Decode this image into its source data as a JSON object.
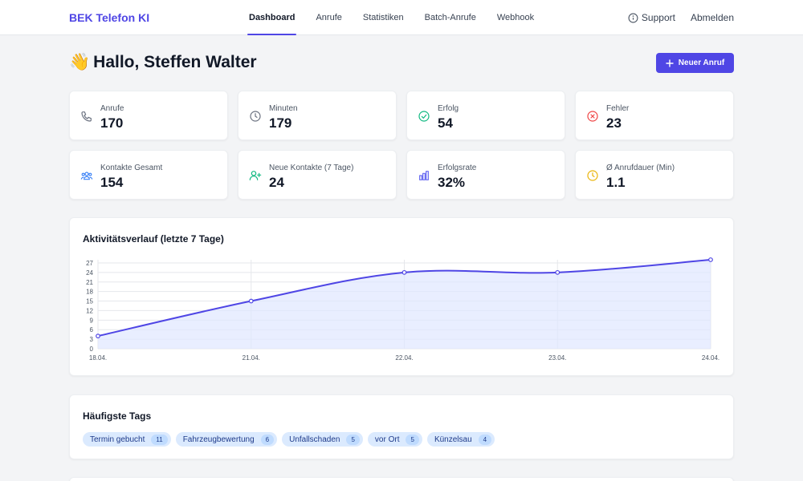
{
  "header": {
    "brand": "BEK Telefon KI",
    "nav": [
      {
        "label": "Dashboard",
        "active": true
      },
      {
        "label": "Anrufe"
      },
      {
        "label": "Statistiken"
      },
      {
        "label": "Batch-Anrufe"
      },
      {
        "label": "Webhook"
      }
    ],
    "support_label": "Support",
    "logout_label": "Abmelden"
  },
  "greeting": {
    "emoji": "👋",
    "text": "Hallo, Steffen Walter"
  },
  "new_call_label": "Neuer Anruf",
  "stats": [
    {
      "label": "Anrufe",
      "value": "170",
      "icon": "phone-icon",
      "color": "#6b7280"
    },
    {
      "label": "Minuten",
      "value": "179",
      "icon": "clock-icon",
      "color": "#6b7280"
    },
    {
      "label": "Erfolg",
      "value": "54",
      "icon": "check-circle-icon",
      "color": "#10b981"
    },
    {
      "label": "Fehler",
      "value": "23",
      "icon": "x-circle-icon",
      "color": "#ef4444"
    },
    {
      "label": "Kontakte Gesamt",
      "value": "154",
      "icon": "users-icon",
      "color": "#3b82f6"
    },
    {
      "label": "Neue Kontakte (7 Tage)",
      "value": "24",
      "icon": "user-plus-icon",
      "color": "#10b981"
    },
    {
      "label": "Erfolgsrate",
      "value": "32%",
      "icon": "bar-chart-icon",
      "color": "#6366f1"
    },
    {
      "label": "Ø Anrufdauer (Min)",
      "value": "1.1",
      "icon": "clock-icon",
      "color": "#eab308"
    }
  ],
  "chart_title": "Aktivitätsverlauf (letzte 7 Tage)",
  "chart_data": {
    "type": "area",
    "title": "Aktivitätsverlauf (letzte 7 Tage)",
    "x": [
      "18.04.",
      "21.04.",
      "22.04.",
      "23.04.",
      "24.04."
    ],
    "series": [
      {
        "values": [
          4,
          15,
          24,
          24,
          28
        ]
      }
    ],
    "yticks": [
      0,
      3,
      6,
      9,
      12,
      15,
      18,
      21,
      24,
      27
    ],
    "ylim": [
      0,
      28
    ],
    "grid": true,
    "line_color": "#4f46e5",
    "fill_color": "#e0e7ff"
  },
  "tags_title": "Häufigste Tags",
  "tags": [
    {
      "label": "Termin gebucht",
      "count": "11"
    },
    {
      "label": "Fahrzeugbewertung",
      "count": "6"
    },
    {
      "label": "Unfallschaden",
      "count": "5"
    },
    {
      "label": "vor Ort",
      "count": "5"
    },
    {
      "label": "Künzelsau",
      "count": "4"
    }
  ]
}
